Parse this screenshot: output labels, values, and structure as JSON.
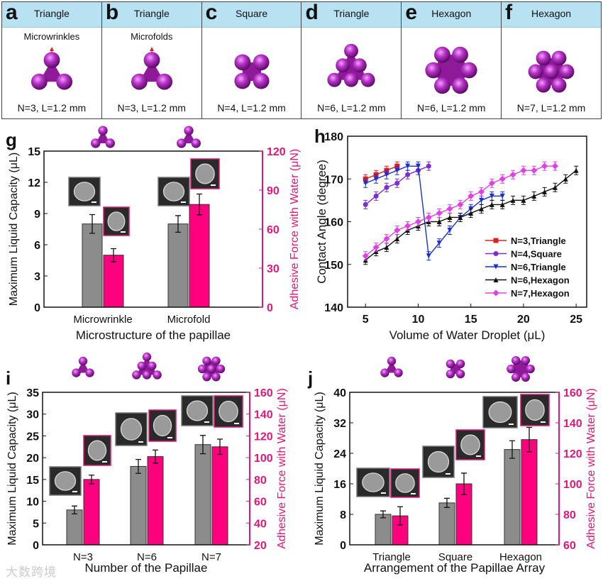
{
  "top_panels": [
    {
      "letter": "a",
      "shape": "Triangle",
      "note": "Microwrinkles",
      "param": "N=3, L=1.2 mm",
      "motif": "tri3"
    },
    {
      "letter": "b",
      "shape": "Triangle",
      "note": "Microfolds",
      "param": "N=3, L=1.2 mm",
      "motif": "tri3"
    },
    {
      "letter": "c",
      "shape": "Square",
      "note": "",
      "param": "N=4, L=1.2 mm",
      "motif": "square4"
    },
    {
      "letter": "d",
      "shape": "Triangle",
      "note": "",
      "param": "N=6, L=1.2 mm",
      "motif": "tri6"
    },
    {
      "letter": "e",
      "shape": "Hexagon",
      "note": "",
      "param": "N=6, L=1.2 mm",
      "motif": "hex6"
    },
    {
      "letter": "f",
      "shape": "Hexagon",
      "note": "",
      "param": "N=7, L=1.2 mm",
      "motif": "hex7"
    }
  ],
  "colors": {
    "gray_bar": "#8c8c8c",
    "pink_bar": "#ff007f",
    "pink_axis": "#e0177a",
    "motif": "#8e1a9a",
    "motif_ball": "#b531c4",
    "header": "#b8e2f2"
  },
  "watermark": "大数跨境",
  "chart_data": [
    {
      "panel": "g",
      "type": "bar",
      "categories": [
        "Microwrinkle",
        "Microfold"
      ],
      "motifs": [
        "tri3",
        "tri3"
      ],
      "xlabel": "Microstructure of the papillae",
      "ylabel": "Maximum Liquid Capacity (μL)",
      "ylim": [
        0,
        15
      ],
      "ystep": 3,
      "y2label": "Adhesive Force with Water (μN)",
      "y2lim": [
        0,
        120
      ],
      "y2step": 30,
      "series": [
        {
          "name": "Maximum Liquid Capacity",
          "axis": "left",
          "values": [
            8,
            8
          ],
          "errors": [
            0.9,
            0.8
          ]
        },
        {
          "name": "Adhesive Force with Water",
          "axis": "right",
          "values": [
            40,
            79
          ],
          "errors": [
            5,
            8
          ]
        }
      ]
    },
    {
      "panel": "h",
      "type": "line",
      "xlabel": "Volume of Water Droplet (μL)",
      "ylabel": "Contact Angle (degree)",
      "xlim": [
        3.3,
        26
      ],
      "ylim": [
        140,
        180
      ],
      "xticks": [
        5,
        10,
        15,
        20,
        25
      ],
      "yticks": [
        140,
        150,
        160,
        170,
        180
      ],
      "legend_position": "bottom-right",
      "series": [
        {
          "name": "N=3,Triangle",
          "color": "#e0201e",
          "marker": "square",
          "x": [
            5,
            6,
            7,
            8
          ],
          "y": [
            170,
            171,
            172,
            173
          ]
        },
        {
          "name": "N=4,Square",
          "color": "#7b2fd0",
          "marker": "circle",
          "x": [
            5,
            6,
            7,
            8,
            9,
            10,
            11
          ],
          "y": [
            164,
            166,
            168,
            169,
            171,
            172,
            173
          ]
        },
        {
          "name": "N=6,Triangle",
          "color": "#1a2fd6",
          "marker": "triangle-down",
          "x": [
            5,
            6,
            7,
            8,
            9,
            10,
            11,
            12,
            13,
            14,
            15,
            16,
            17,
            18
          ],
          "y": [
            169,
            170,
            171,
            172,
            173,
            173,
            152,
            155,
            158,
            161,
            163,
            165,
            166,
            166
          ]
        },
        {
          "name": "N=6,Hexagon",
          "color": "#111111",
          "marker": "triangle-up",
          "x": [
            5,
            6,
            7,
            8,
            9,
            10,
            11,
            12,
            13,
            14,
            15,
            16,
            17,
            18,
            19,
            20,
            21,
            22,
            23,
            24,
            25
          ],
          "y": [
            151,
            153,
            154,
            156,
            158,
            159,
            160,
            160,
            161,
            161,
            162,
            163,
            164,
            164,
            165,
            165,
            166,
            167,
            168,
            170,
            172
          ]
        },
        {
          "name": "N=7,Hexagon",
          "color": "#e040e8",
          "marker": "diamond",
          "x": [
            5,
            6,
            7,
            8,
            9,
            10,
            11,
            12,
            13,
            14,
            15,
            16,
            17,
            18,
            19,
            20,
            21,
            22,
            23
          ],
          "y": [
            152,
            154,
            156,
            158,
            159,
            160,
            161,
            162,
            163,
            164,
            166,
            167,
            169,
            170,
            171,
            172,
            172,
            173,
            173
          ]
        }
      ]
    },
    {
      "panel": "i",
      "type": "bar",
      "categories": [
        "N=3",
        "N=6",
        "N=7"
      ],
      "motifs": [
        "tri3",
        "tri6",
        "hex7"
      ],
      "xlabel": "Number of the Papillae",
      "ylabel": "Maximum Liquid Capacity (μL)",
      "ylim": [
        0,
        35
      ],
      "ystep": 5,
      "y2label": "Adhesive Force with Water (μN)",
      "y2lim": [
        20,
        160
      ],
      "y2step": 20,
      "series": [
        {
          "name": "Maximum Liquid Capacity",
          "axis": "left",
          "values": [
            8,
            18,
            23
          ],
          "errors": [
            0.9,
            1.6,
            2.1
          ]
        },
        {
          "name": "Adhesive Force with Water",
          "axis": "right",
          "values": [
            80,
            101,
            110
          ],
          "errors": [
            4,
            6,
            7
          ]
        }
      ]
    },
    {
      "panel": "j",
      "type": "bar",
      "categories": [
        "Triangle",
        "Square",
        "Hexagon"
      ],
      "motifs": [
        "tri3",
        "square4",
        "hex6"
      ],
      "xlabel": "Arrangement of the Papillae Array",
      "ylabel": "Maximum Liquid Capacity (μL)",
      "ylim": [
        0,
        40
      ],
      "ystep": 8,
      "y2label": "Adhesive Force with Water (μN)",
      "y2lim": [
        60,
        160
      ],
      "y2step": 20,
      "series": [
        {
          "name": "Maximum Liquid Capacity",
          "axis": "left",
          "values": [
            8,
            11,
            25
          ],
          "errors": [
            0.9,
            1.2,
            2.3
          ]
        },
        {
          "name": "Adhesive Force with Water",
          "axis": "right",
          "values": [
            79,
            100,
            129
          ],
          "errors": [
            6,
            7,
            8
          ]
        }
      ]
    }
  ]
}
